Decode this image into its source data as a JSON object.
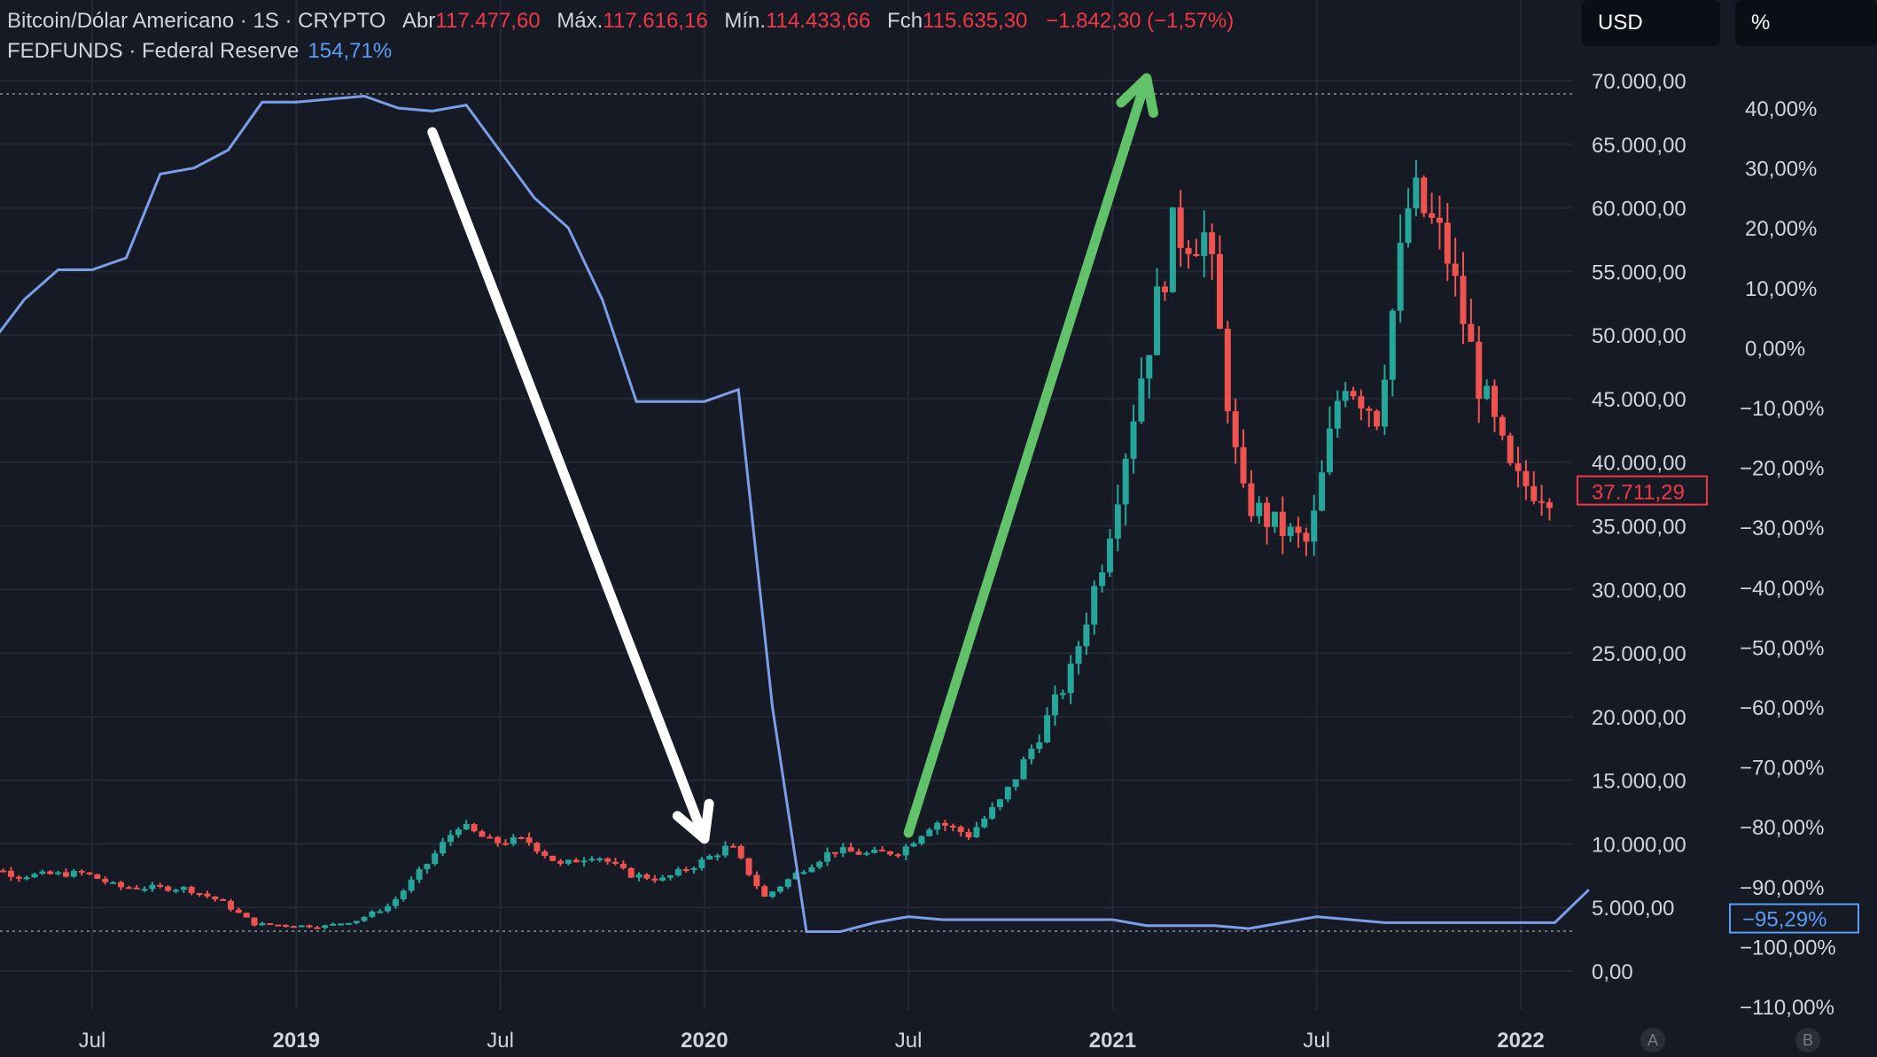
{
  "legend": {
    "btc_symbol": "Bitcoin/Dólar Americano · 1S · CRYPTO",
    "open_label": "Abr",
    "open_value": "117.477,60",
    "high_label": "Máx.",
    "high_value": "117.616,16",
    "low_label": "Mín.",
    "low_value": "114.433,66",
    "close_label": "Fch",
    "close_value": "115.635,30",
    "change": "−1.842,30 (−1,57%)",
    "fed_symbol": "FEDFUNDS · Federal Reserve",
    "fed_value": "154,71%"
  },
  "toolbar": {
    "currency": "USD",
    "percent": "%",
    "scale_a": "A",
    "scale_b": "B"
  },
  "colors": {
    "background": "#161a25",
    "grid": "#232834",
    "up": "#26a69a",
    "down": "#ef5350",
    "fed_line": "#7c9ee8",
    "white_arrow": "#ffffff",
    "green_arrow": "#62c26a"
  },
  "chart_data": {
    "type": "candlestick",
    "x_axis": {
      "ticks": [
        {
          "label": "Jul",
          "date": "2018-07"
        },
        {
          "label": "2019",
          "date": "2019-01"
        },
        {
          "label": "Jul",
          "date": "2019-07"
        },
        {
          "label": "2020",
          "date": "2020-01"
        },
        {
          "label": "Jul",
          "date": "2020-07"
        },
        {
          "label": "2021",
          "date": "2021-01"
        },
        {
          "label": "Jul",
          "date": "2021-07"
        },
        {
          "label": "2022",
          "date": "2022-01"
        }
      ],
      "range": [
        "2018-03",
        "2022-03"
      ]
    },
    "y_axis_left_usd": {
      "labels": [
        "70.000,00",
        "65.000,00",
        "60.000,00",
        "55.000,00",
        "50.000,00",
        "45.000,00",
        "40.000,00",
        "35.000,00",
        "30.000,00",
        "25.000,00",
        "20.000,00",
        "15.000,00",
        "10.000,00",
        "5.000,00",
        "0,00"
      ],
      "values": [
        70000,
        65000,
        60000,
        55000,
        50000,
        45000,
        40000,
        35000,
        30000,
        25000,
        20000,
        15000,
        10000,
        5000,
        0
      ],
      "last_price_label": "37.711,29",
      "last_price": 37711.29
    },
    "y_axis_right_pct": {
      "labels": [
        "40,00%",
        "30,00%",
        "20,00%",
        "10,00%",
        "0,00%",
        "−10,00%",
        "−20,00%",
        "−30,00%",
        "−40,00%",
        "−50,00%",
        "−60,00%",
        "−70,00%",
        "−80,00%",
        "−90,00%",
        "−100,00%",
        "−110,00%"
      ],
      "values": [
        40,
        30,
        20,
        10,
        0,
        -10,
        -20,
        -30,
        -40,
        -50,
        -60,
        -70,
        -80,
        -90,
        -100,
        -110
      ],
      "last_value_label": "−95,29%",
      "last_value": -95.29
    },
    "btc_weekly_close": [
      {
        "date": "2018-03",
        "close": 9300
      },
      {
        "date": "2018-05",
        "close": 7500
      },
      {
        "date": "2018-07",
        "close": 7700
      },
      {
        "date": "2018-08",
        "close": 6600
      },
      {
        "date": "2018-10",
        "close": 6500
      },
      {
        "date": "2018-11",
        "close": 5500
      },
      {
        "date": "2018-12",
        "close": 3700
      },
      {
        "date": "2019-02",
        "close": 3500
      },
      {
        "date": "2019-03",
        "close": 4000
      },
      {
        "date": "2019-04",
        "close": 5200
      },
      {
        "date": "2019-05",
        "close": 8200
      },
      {
        "date": "2019-06",
        "close": 11500
      },
      {
        "date": "2019-07",
        "close": 10100
      },
      {
        "date": "2019-08",
        "close": 10300
      },
      {
        "date": "2019-09",
        "close": 8300
      },
      {
        "date": "2019-10",
        "close": 9200
      },
      {
        "date": "2019-11",
        "close": 7600
      },
      {
        "date": "2019-12",
        "close": 7200
      },
      {
        "date": "2020-01",
        "close": 8400
      },
      {
        "date": "2020-02",
        "close": 9900
      },
      {
        "date": "2020-03",
        "close": 5800
      },
      {
        "date": "2020-04",
        "close": 7800
      },
      {
        "date": "2020-05",
        "close": 9500
      },
      {
        "date": "2020-06",
        "close": 9200
      },
      {
        "date": "2020-07",
        "close": 9400
      },
      {
        "date": "2020-08",
        "close": 11800
      },
      {
        "date": "2020-09",
        "close": 10700
      },
      {
        "date": "2020-10",
        "close": 13500
      },
      {
        "date": "2020-11",
        "close": 18200
      },
      {
        "date": "2020-12",
        "close": 23500
      },
      {
        "date": "2021-01",
        "close": 33000
      },
      {
        "date": "2021-02",
        "close": 46000
      },
      {
        "date": "2021-03",
        "close": 58000
      },
      {
        "date": "2021-04",
        "close": 57800
      },
      {
        "date": "2021-05",
        "close": 37300
      },
      {
        "date": "2021-06",
        "close": 35000
      },
      {
        "date": "2021-07",
        "close": 33500
      },
      {
        "date": "2021-08",
        "close": 47000
      },
      {
        "date": "2021-09",
        "close": 43800
      },
      {
        "date": "2021-10",
        "close": 61300
      },
      {
        "date": "2021-11",
        "close": 57000
      },
      {
        "date": "2021-12",
        "close": 46300
      },
      {
        "date": "2022-01",
        "close": 38500
      },
      {
        "date": "2022-02",
        "close": 37711
      }
    ],
    "fedfunds_pct": [
      {
        "date": "2018-03",
        "value": 0
      },
      {
        "date": "2018-04",
        "value": 0.5
      },
      {
        "date": "2018-05",
        "value": 8
      },
      {
        "date": "2018-06",
        "value": 13
      },
      {
        "date": "2018-07",
        "value": 13
      },
      {
        "date": "2018-08",
        "value": 15
      },
      {
        "date": "2018-09",
        "value": 29
      },
      {
        "date": "2018-10",
        "value": 30
      },
      {
        "date": "2018-11",
        "value": 33
      },
      {
        "date": "2018-12",
        "value": 41
      },
      {
        "date": "2019-01",
        "value": 41
      },
      {
        "date": "2019-03",
        "value": 42
      },
      {
        "date": "2019-04",
        "value": 40
      },
      {
        "date": "2019-05",
        "value": 39.5
      },
      {
        "date": "2019-06",
        "value": 40.5
      },
      {
        "date": "2019-08",
        "value": 25
      },
      {
        "date": "2019-09",
        "value": 20
      },
      {
        "date": "2019-10",
        "value": 8
      },
      {
        "date": "2019-11",
        "value": -9
      },
      {
        "date": "2019-12",
        "value": -9
      },
      {
        "date": "2020-01",
        "value": -9
      },
      {
        "date": "2020-02",
        "value": -7
      },
      {
        "date": "2020-03",
        "value": -60
      },
      {
        "date": "2020-04",
        "value": -97.5
      },
      {
        "date": "2020-05",
        "value": -97.5
      },
      {
        "date": "2020-06",
        "value": -96
      },
      {
        "date": "2020-07",
        "value": -95
      },
      {
        "date": "2020-08",
        "value": -95.5
      },
      {
        "date": "2020-09",
        "value": -95.5
      },
      {
        "date": "2020-10",
        "value": -95.5
      },
      {
        "date": "2020-11",
        "value": -95.5
      },
      {
        "date": "2020-12",
        "value": -95.5
      },
      {
        "date": "2021-01",
        "value": -95.5
      },
      {
        "date": "2021-02",
        "value": -96.5
      },
      {
        "date": "2021-04",
        "value": -96.5
      },
      {
        "date": "2021-05",
        "value": -97
      },
      {
        "date": "2021-06",
        "value": -96
      },
      {
        "date": "2021-07",
        "value": -95
      },
      {
        "date": "2021-08",
        "value": -95.5
      },
      {
        "date": "2021-09",
        "value": -96
      },
      {
        "date": "2021-10",
        "value": -96
      },
      {
        "date": "2021-11",
        "value": -96
      },
      {
        "date": "2021-12",
        "value": -96
      },
      {
        "date": "2022-01",
        "value": -96
      },
      {
        "date": "2022-02",
        "value": -96
      },
      {
        "date": "2022-03",
        "value": -90.5
      }
    ],
    "annotations": [
      {
        "type": "arrow",
        "color": "white",
        "from": {
          "date": "2019-05",
          "pct": 36
        },
        "to": {
          "date": "2020-01",
          "pct": -82
        }
      },
      {
        "type": "arrow",
        "color": "green",
        "from": {
          "date": "2020-07",
          "pct": -81
        },
        "to": {
          "date": "2021-02",
          "pct": 45
        }
      }
    ],
    "grid": true
  }
}
